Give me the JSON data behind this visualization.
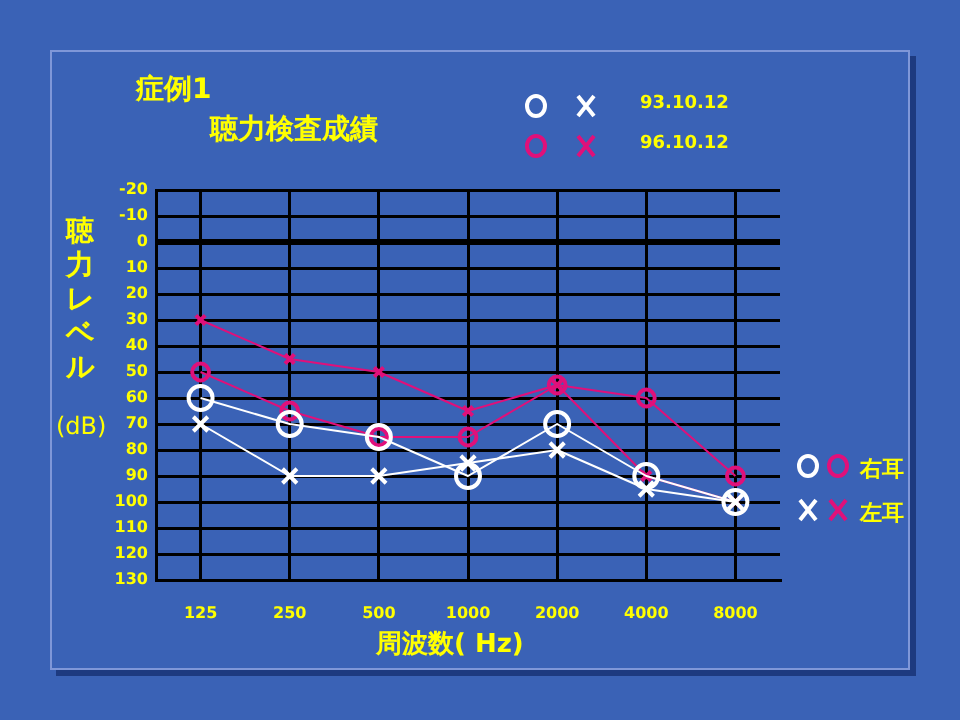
{
  "chart_data": {
    "type": "line",
    "title": "症例1",
    "subtitle": "聴力検査成績",
    "xlabel": "周波数( Hz)",
    "ylabel": "聴力レベル\n(dB)",
    "categories": [
      "125",
      "250",
      "500",
      "1000",
      "2000",
      "4000",
      "8000"
    ],
    "series": [
      {
        "color": "#ffffff",
        "marker": "circle",
        "values": [
          60,
          70,
          75,
          90,
          70,
          90,
          100
        ]
      },
      {
        "color": "#ffffff",
        "marker": "cross",
        "values": [
          70,
          90,
          90,
          85,
          80,
          95,
          100
        ]
      },
      {
        "color": "#e0107a",
        "marker": "circle",
        "values": [
          50,
          65,
          75,
          75,
          55,
          60,
          90
        ]
      },
      {
        "color": "#e0107a",
        "marker": "cross",
        "values": [
          30,
          45,
          50,
          65,
          55,
          90,
          100
        ]
      }
    ],
    "ylim": [
      130,
      -20
    ],
    "yticks": [
      -20,
      -10,
      0,
      10,
      20,
      30,
      40,
      50,
      60,
      70,
      80,
      90,
      100,
      110,
      120,
      130
    ],
    "ref_lines": [
      {
        "axis": "y",
        "value": 0,
        "color": "#000000"
      }
    ],
    "grid": true,
    "annotations": [
      "93.10.12",
      "96.10.12",
      "右耳",
      "左耳"
    ]
  }
}
